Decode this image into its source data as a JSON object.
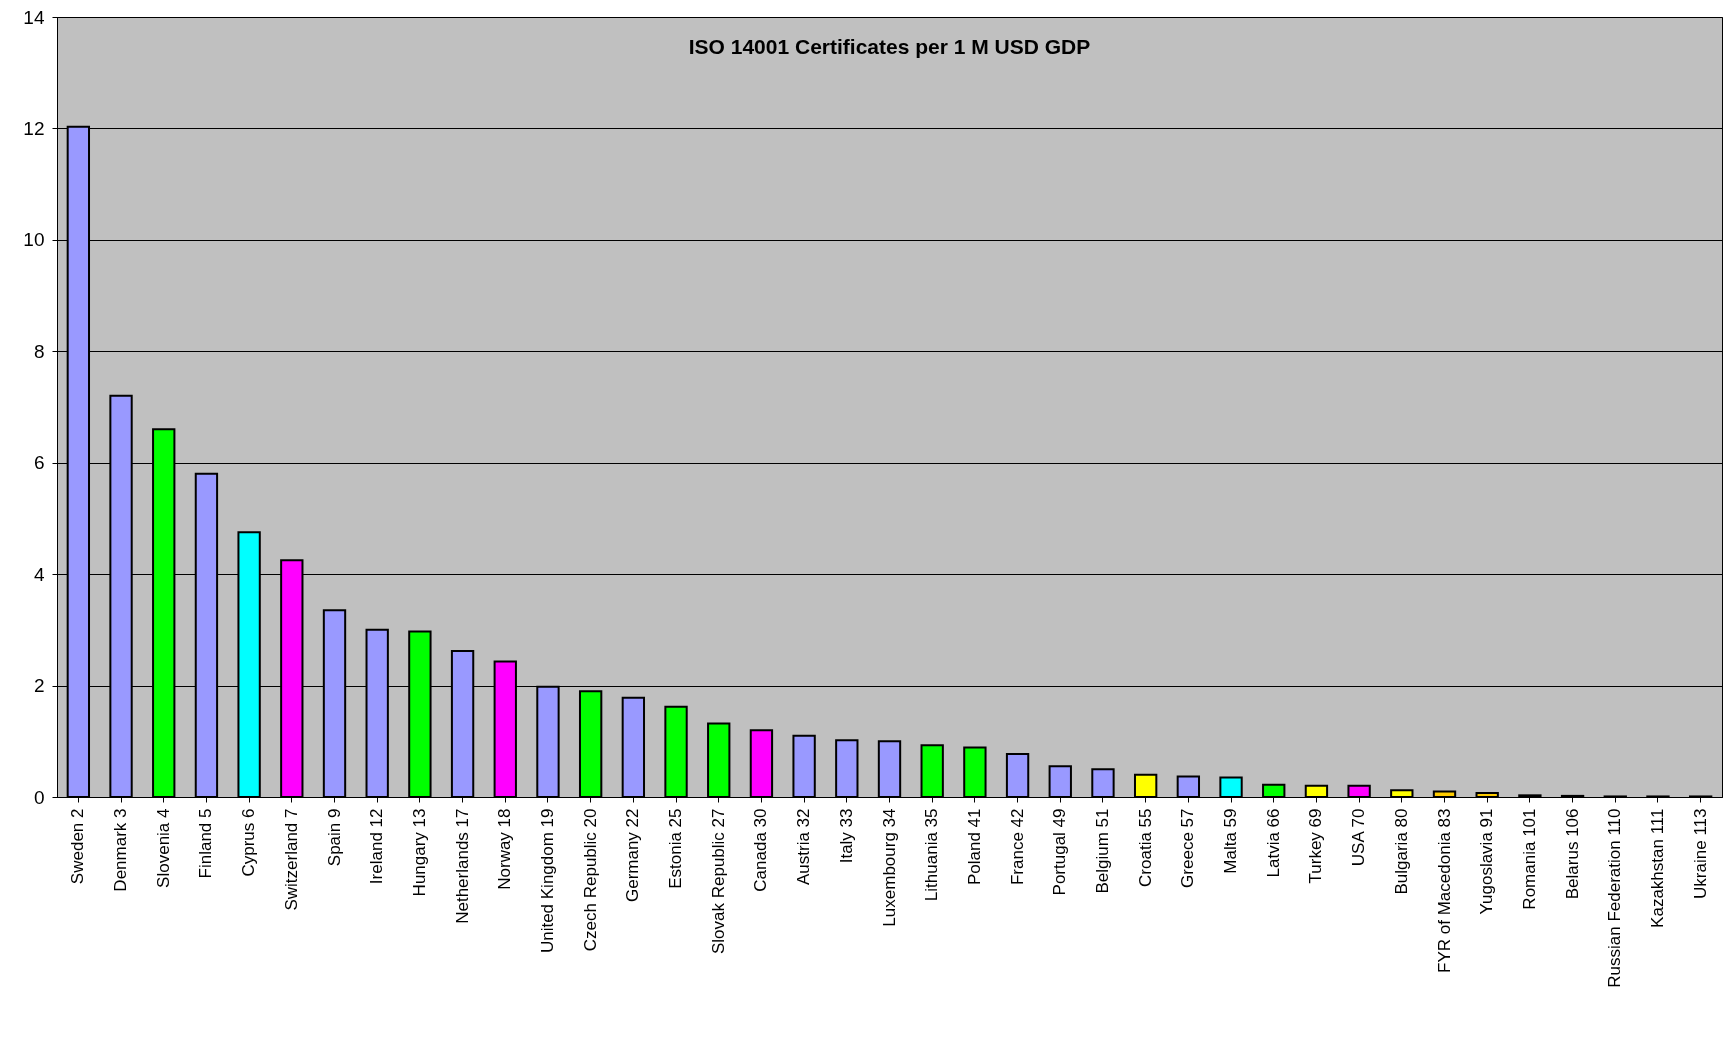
{
  "chart_data": {
    "type": "bar",
    "title": "ISO 14001 Certificates per 1 M USD GDP",
    "categories": [
      "Sweden 2",
      "Denmark 3",
      "Slovenia 4",
      "Finland 5",
      "Cyprus 6",
      "Switzerland 7",
      "Spain 9",
      "Ireland 12",
      "Hungary 13",
      "Netherlands 17",
      "Norway 18",
      "United Kingdom 19",
      "Czech Republic 20",
      "Germany 22",
      "Estonia 25",
      "Slovak Republic 27",
      "Canada 30",
      "Austria 32",
      "Italy 33",
      "Luxembourg 34",
      "Lithuania 35",
      "Poland 41",
      "France 42",
      "Portugal 49",
      "Belgium 51",
      "Croatia 55",
      "Greece 57",
      "Malta 59",
      "Latvia 66",
      "Turkey 69",
      "USA 70",
      "Bulgaria 80",
      "FYR of Macedonia 83",
      "Yugoslavia 91",
      "Romania 101",
      "Belarus 106",
      "Russian Federation 110",
      "Kazakhstan 111",
      "Ukraine 113"
    ],
    "values": [
      12.03,
      7.2,
      6.6,
      5.8,
      4.75,
      4.25,
      3.35,
      3.0,
      2.97,
      2.62,
      2.43,
      1.98,
      1.9,
      1.78,
      1.62,
      1.32,
      1.2,
      1.1,
      1.02,
      1.0,
      0.93,
      0.89,
      0.77,
      0.55,
      0.5,
      0.4,
      0.37,
      0.35,
      0.22,
      0.2,
      0.2,
      0.12,
      0.1,
      0.07,
      0.03,
      0.02,
      0.01,
      0.01,
      0.01
    ],
    "colors": [
      "#9999ff",
      "#9999ff",
      "#00ff00",
      "#9999ff",
      "#00ffff",
      "#ff00ff",
      "#9999ff",
      "#9999ff",
      "#00ff00",
      "#9999ff",
      "#ff00ff",
      "#9999ff",
      "#00ff00",
      "#9999ff",
      "#00ff00",
      "#00ff00",
      "#ff00ff",
      "#9999ff",
      "#9999ff",
      "#9999ff",
      "#00ff00",
      "#00ff00",
      "#9999ff",
      "#9999ff",
      "#9999ff",
      "#ffff00",
      "#9999ff",
      "#00ffff",
      "#00ff00",
      "#ffff00",
      "#ff00ff",
      "#ffff00",
      "#ffcc00",
      "#ffcc00",
      "#ffcc00",
      "#ffcc00",
      "#ffcc00",
      "#ffcc00",
      "#ffcc00"
    ],
    "ylim": [
      0,
      14
    ],
    "yticks": [
      0,
      2,
      4,
      6,
      8,
      10,
      12,
      14
    ],
    "grid": "y"
  }
}
